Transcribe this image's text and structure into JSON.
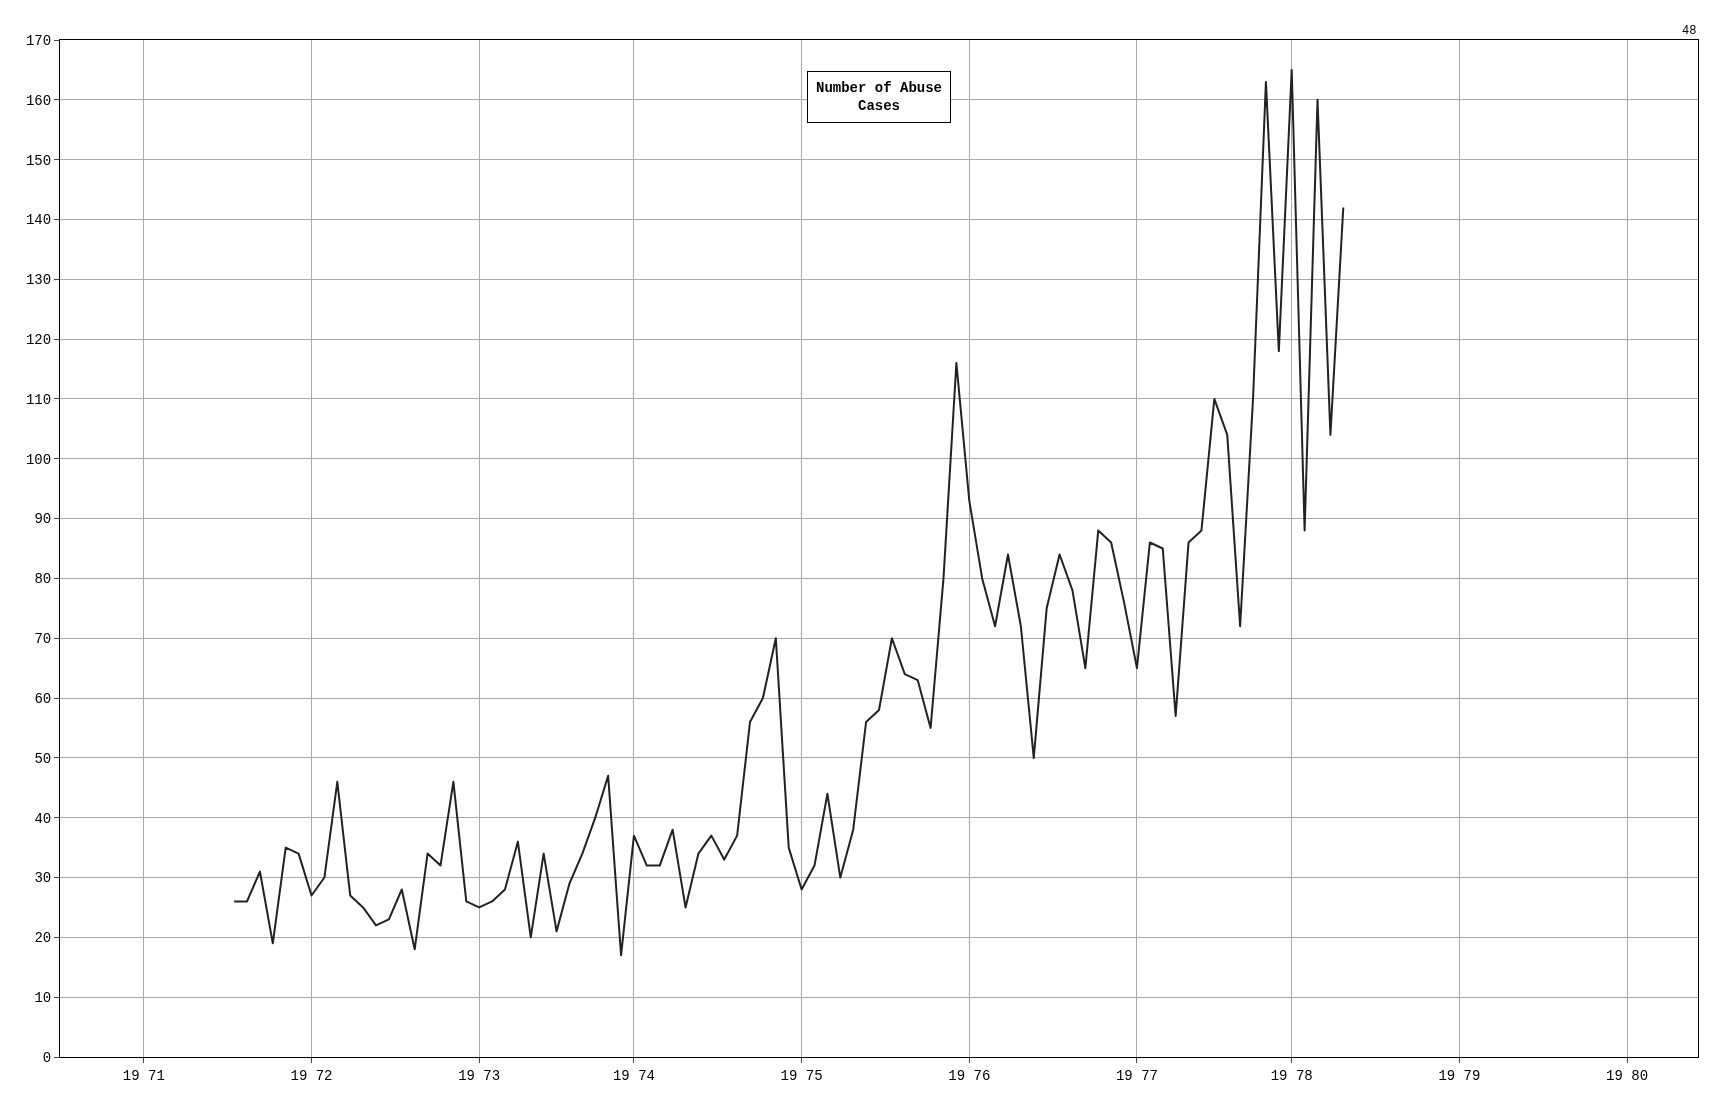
{
  "chart_data": {
    "type": "line",
    "title": "Number of Abuse\nCases",
    "categories": [
      null,
      null,
      null,
      null,
      null,
      null,
      "19 71",
      null,
      null,
      null,
      null,
      null,
      null,
      null,
      null,
      null,
      null,
      null,
      null,
      "19 72",
      null,
      null,
      null,
      null,
      null,
      null,
      null,
      null,
      null,
      null,
      null,
      null,
      "19 73",
      null,
      null,
      null,
      null,
      null,
      null,
      null,
      null,
      null,
      null,
      null,
      "19 74",
      null,
      null,
      null,
      null,
      null,
      null,
      null,
      null,
      null,
      null,
      null,
      null,
      "19 75",
      null,
      null,
      null,
      null,
      null,
      null,
      null,
      null,
      null,
      null,
      null,
      null,
      "19 76",
      null,
      null,
      null,
      null,
      null,
      null,
      null,
      null,
      null,
      null,
      null,
      null,
      "19 77",
      null,
      null,
      null,
      null,
      null,
      null,
      null,
      null,
      null,
      null,
      null,
      "19 78",
      null,
      null,
      null,
      null,
      null,
      null,
      null,
      null,
      null,
      null,
      null,
      null,
      "19 79",
      null,
      null,
      null,
      null,
      null,
      null,
      null,
      null,
      null,
      null,
      null,
      null,
      "19 80",
      null,
      null,
      null,
      null,
      null
    ],
    "series": [
      {
        "color": "#222222",
        "values": [
          null,
          null,
          null,
          null,
          null,
          null,
          null,
          null,
          null,
          null,
          null,
          null,
          null,
          26,
          26,
          31,
          19,
          35,
          34,
          27,
          30,
          46,
          27,
          25,
          22,
          23,
          28,
          18,
          34,
          32,
          46,
          26,
          25,
          26,
          28,
          36,
          20,
          34,
          21,
          29,
          34,
          40,
          47,
          17,
          37,
          32,
          32,
          38,
          25,
          34,
          37,
          33,
          37,
          56,
          60,
          70,
          35,
          28,
          32,
          44,
          30,
          38,
          56,
          58,
          70,
          64,
          63,
          55,
          80,
          116,
          93,
          80,
          72,
          84,
          72,
          50,
          75,
          84,
          78,
          65,
          88,
          86,
          76,
          65,
          86,
          85,
          57,
          86,
          88,
          110,
          104,
          72,
          110,
          163,
          118,
          165,
          88,
          160,
          104,
          142,
          null,
          null,
          null,
          null,
          null,
          null,
          null,
          null,
          null,
          null,
          null,
          null,
          null,
          null,
          null,
          null,
          null,
          null,
          null,
          null,
          null,
          null,
          null,
          null,
          null,
          null,
          null
        ]
      }
    ],
    "ylim": [
      0,
      170
    ],
    "yticks": [
      0,
      10,
      20,
      30,
      40,
      50,
      60,
      70,
      80,
      90,
      100,
      110,
      120,
      130,
      140,
      150,
      160,
      170
    ],
    "grid": true,
    "line_style": "solid",
    "marker": "none",
    "annotations": [
      "48"
    ]
  }
}
